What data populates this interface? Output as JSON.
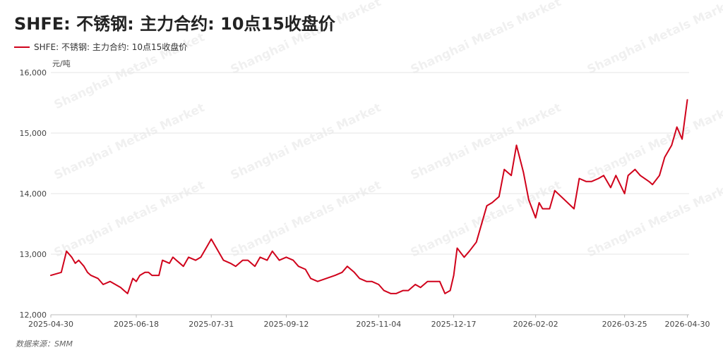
{
  "header": {
    "title": "SHFE: 不锈钢: 主力合约: 10点15收盘价"
  },
  "legend": {
    "label": "SHFE: 不锈钢: 主力合约: 10点15收盘价"
  },
  "unit": "元/吨",
  "source": "数据来源：SMM",
  "watermark_text": "Shanghai Metals Market",
  "colors": {
    "series": "#d0021b",
    "grid": "#e6e6e6",
    "axis": "#bbbbbb"
  },
  "chart_data": {
    "type": "line",
    "title": "SHFE: 不锈钢: 主力合约: 10点15收盘价",
    "ylabel": "元/吨",
    "ylim": [
      12000,
      16000
    ],
    "yticks": [
      12000,
      13000,
      14000,
      15000,
      16000
    ],
    "ytick_labels": [
      "12,000",
      "13,000",
      "14,000",
      "15,000",
      "16,000"
    ],
    "xlim": [
      "2025-04-30",
      "2026-05-01"
    ],
    "xticks": [
      "2025-04-30",
      "2025-06-18",
      "2025-07-31",
      "2025-09-12",
      "2025-11-04",
      "2025-12-17",
      "2026-02-02",
      "2026-03-25",
      "2026-04-30"
    ],
    "grid": true,
    "legend_position": "top-left",
    "series": [
      {
        "name": "SHFE: 不锈钢: 主力合约: 10点15收盘价",
        "x": [
          "2025-04-30",
          "2025-05-06",
          "2025-05-09",
          "2025-05-12",
          "2025-05-14",
          "2025-05-16",
          "2025-05-19",
          "2025-05-21",
          "2025-05-23",
          "2025-05-27",
          "2025-05-30",
          "2025-06-03",
          "2025-06-06",
          "2025-06-09",
          "2025-06-11",
          "2025-06-13",
          "2025-06-16",
          "2025-06-18",
          "2025-06-20",
          "2025-06-23",
          "2025-06-25",
          "2025-06-27",
          "2025-07-01",
          "2025-07-03",
          "2025-07-07",
          "2025-07-09",
          "2025-07-11",
          "2025-07-15",
          "2025-07-18",
          "2025-07-22",
          "2025-07-25",
          "2025-07-29",
          "2025-07-31",
          "2025-08-04",
          "2025-08-07",
          "2025-08-11",
          "2025-08-14",
          "2025-08-18",
          "2025-08-21",
          "2025-08-25",
          "2025-08-28",
          "2025-09-01",
          "2025-09-04",
          "2025-09-08",
          "2025-09-12",
          "2025-09-16",
          "2025-09-19",
          "2025-09-23",
          "2025-09-26",
          "2025-09-30",
          "2025-10-10",
          "2025-10-14",
          "2025-10-17",
          "2025-10-21",
          "2025-10-24",
          "2025-10-28",
          "2025-10-31",
          "2025-11-04",
          "2025-11-07",
          "2025-11-11",
          "2025-11-14",
          "2025-11-18",
          "2025-11-21",
          "2025-11-25",
          "2025-11-28",
          "2025-12-02",
          "2025-12-05",
          "2025-12-09",
          "2025-12-12",
          "2025-12-15",
          "2025-12-17",
          "2025-12-19",
          "2025-12-23",
          "2025-12-26",
          "2025-12-30",
          "2026-01-05",
          "2026-01-08",
          "2026-01-12",
          "2026-01-15",
          "2026-01-19",
          "2026-01-22",
          "2026-01-26",
          "2026-01-29",
          "2026-02-02",
          "2026-02-04",
          "2026-02-06",
          "2026-02-10",
          "2026-02-13",
          "2026-02-24",
          "2026-02-27",
          "2026-03-03",
          "2026-03-06",
          "2026-03-10",
          "2026-03-13",
          "2026-03-17",
          "2026-03-20",
          "2026-03-25",
          "2026-03-27",
          "2026-03-31",
          "2026-04-03",
          "2026-04-08",
          "2026-04-10",
          "2026-04-14",
          "2026-04-17",
          "2026-04-21",
          "2026-04-24",
          "2026-04-27",
          "2026-04-30"
        ],
        "values": [
          12650,
          12700,
          13050,
          12950,
          12850,
          12900,
          12800,
          12700,
          12650,
          12600,
          12500,
          12550,
          12500,
          12450,
          12400,
          12350,
          12600,
          12550,
          12650,
          12700,
          12700,
          12650,
          12650,
          12900,
          12850,
          12950,
          12900,
          12800,
          12950,
          12900,
          12950,
          13150,
          13250,
          13050,
          12900,
          12850,
          12800,
          12900,
          12900,
          12800,
          12950,
          12900,
          13050,
          12900,
          12950,
          12900,
          12800,
          12750,
          12600,
          12550,
          12650,
          12700,
          12800,
          12700,
          12600,
          12550,
          12550,
          12500,
          12400,
          12350,
          12350,
          12400,
          12400,
          12500,
          12450,
          12550,
          12550,
          12550,
          12350,
          12400,
          12650,
          13100,
          12950,
          13050,
          13200,
          13800,
          13850,
          13950,
          14400,
          14300,
          14800,
          14350,
          13900,
          13600,
          13850,
          13750,
          13750,
          14050,
          13750,
          14250,
          14200,
          14200,
          14250,
          14300,
          14100,
          14300,
          14000,
          14300,
          14400,
          14300,
          14200,
          14150,
          14300,
          14600,
          14800,
          15100,
          14900,
          15550
        ]
      }
    ]
  }
}
